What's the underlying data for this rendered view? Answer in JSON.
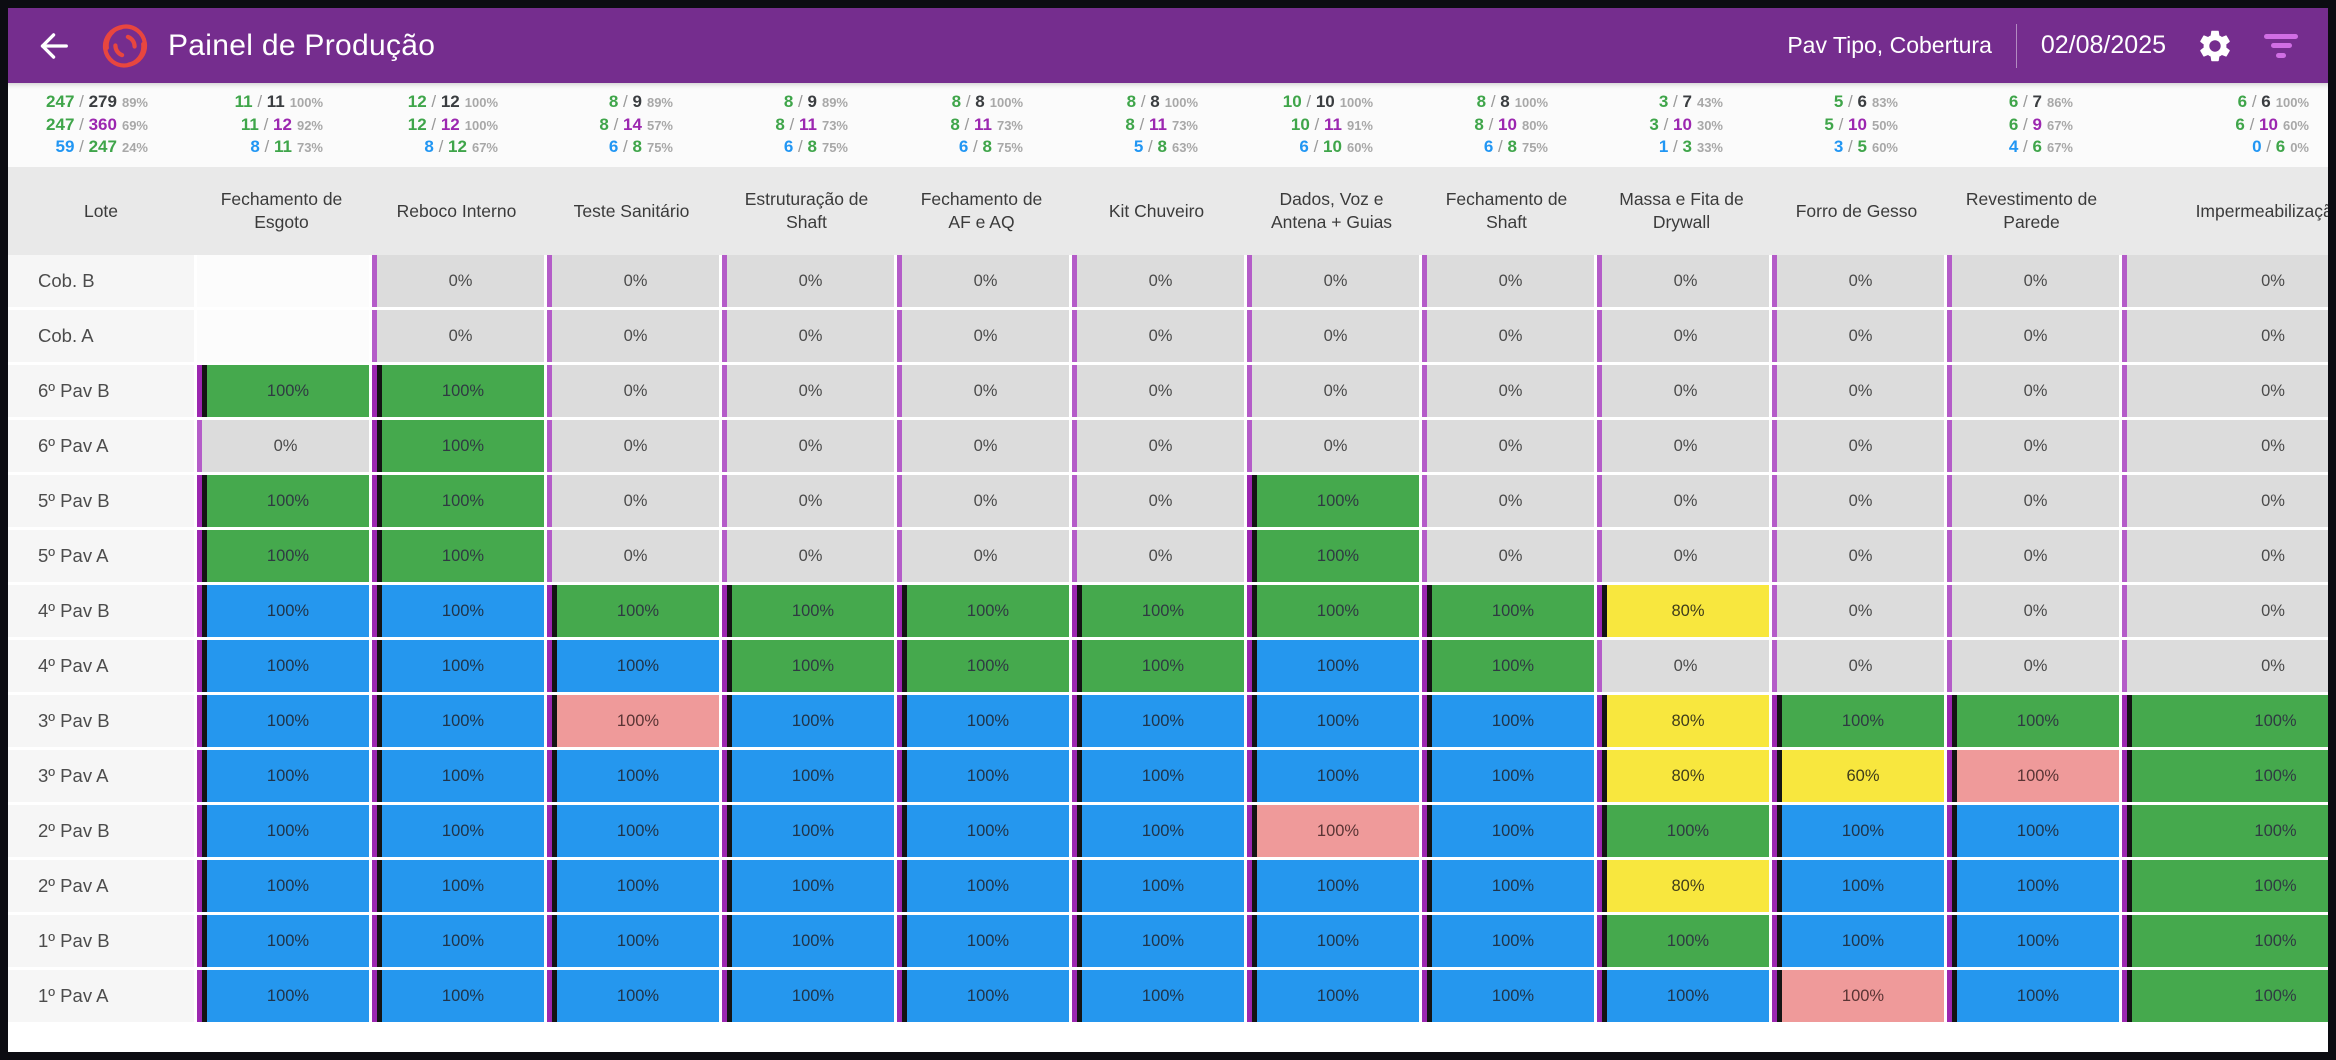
{
  "header": {
    "title": "Painel de Produção",
    "scope": "Pav Tipo, Cobertura",
    "date": "02/08/2025"
  },
  "icons": {
    "back": "arrow-left",
    "logo": "brand-red-swirl",
    "settings": "gear",
    "filter": "filter-bars"
  },
  "columns": [
    {
      "key": "lote",
      "label": "Lote"
    },
    {
      "key": "fechamento-esgoto",
      "label": "Fechamento de Esgoto"
    },
    {
      "key": "reboco-interno",
      "label": "Reboco Interno"
    },
    {
      "key": "teste-sanitario",
      "label": "Teste Sanitário"
    },
    {
      "key": "estruturacao-shaft",
      "label": "Estruturação de Shaft"
    },
    {
      "key": "fechamento-af-aq",
      "label": "Fechamento de AF e AQ"
    },
    {
      "key": "kit-chuveiro",
      "label": "Kit Chuveiro"
    },
    {
      "key": "dados-voz-antena-guias",
      "label": "Dados, Voz e Antena + Guias"
    },
    {
      "key": "fechamento-shaft",
      "label": "Fechamento de Shaft"
    },
    {
      "key": "massa-fita-drywall",
      "label": "Massa e Fita de Drywall"
    },
    {
      "key": "forro-gesso",
      "label": "Forro de Gesso"
    },
    {
      "key": "revestimento-parede",
      "label": "Revestimento de Parede"
    },
    {
      "key": "impermeabilizacao",
      "label": "Impermeabilização"
    }
  ],
  "stats": [
    [
      [
        "247",
        "279",
        "89%"
      ],
      [
        "247",
        "360",
        "69%"
      ],
      [
        "59",
        "247",
        "24%"
      ]
    ],
    [
      [
        "11",
        "11",
        "100%"
      ],
      [
        "11",
        "12",
        "92%"
      ],
      [
        "8",
        "11",
        "73%"
      ]
    ],
    [
      [
        "12",
        "12",
        "100%"
      ],
      [
        "12",
        "12",
        "100%"
      ],
      [
        "8",
        "12",
        "67%"
      ]
    ],
    [
      [
        "8",
        "9",
        "89%"
      ],
      [
        "8",
        "14",
        "57%"
      ],
      [
        "6",
        "8",
        "75%"
      ]
    ],
    [
      [
        "8",
        "9",
        "89%"
      ],
      [
        "8",
        "11",
        "73%"
      ],
      [
        "6",
        "8",
        "75%"
      ]
    ],
    [
      [
        "8",
        "8",
        "100%"
      ],
      [
        "8",
        "11",
        "73%"
      ],
      [
        "6",
        "8",
        "75%"
      ]
    ],
    [
      [
        "8",
        "8",
        "100%"
      ],
      [
        "8",
        "11",
        "73%"
      ],
      [
        "5",
        "8",
        "63%"
      ]
    ],
    [
      [
        "10",
        "10",
        "100%"
      ],
      [
        "10",
        "11",
        "91%"
      ],
      [
        "6",
        "10",
        "60%"
      ]
    ],
    [
      [
        "8",
        "8",
        "100%"
      ],
      [
        "8",
        "10",
        "80%"
      ],
      [
        "6",
        "8",
        "75%"
      ]
    ],
    [
      [
        "3",
        "7",
        "43%"
      ],
      [
        "3",
        "10",
        "30%"
      ],
      [
        "1",
        "3",
        "33%"
      ]
    ],
    [
      [
        "5",
        "6",
        "83%"
      ],
      [
        "5",
        "10",
        "50%"
      ],
      [
        "3",
        "5",
        "60%"
      ]
    ],
    [
      [
        "6",
        "7",
        "86%"
      ],
      [
        "6",
        "9",
        "67%"
      ],
      [
        "4",
        "6",
        "67%"
      ]
    ],
    [
      [
        "6",
        "6",
        "100%"
      ],
      [
        "6",
        "10",
        "60%"
      ],
      [
        "0",
        "6",
        "0%"
      ]
    ]
  ],
  "rows": [
    {
      "label": "Cob. B",
      "cells": [
        "",
        "0%|n",
        "0%|n",
        "0%|n",
        "0%|n",
        "0%|n",
        "0%|n",
        "0%|n",
        "0%|n",
        "0%|n",
        "0%|n",
        "0%|n"
      ]
    },
    {
      "label": "Cob. A",
      "cells": [
        "",
        "0%|n",
        "0%|n",
        "0%|n",
        "0%|n",
        "0%|n",
        "0%|n",
        "0%|n",
        "0%|n",
        "0%|n",
        "0%|n",
        "0%|n"
      ]
    },
    {
      "label": "6º Pav B",
      "cells": [
        "100%|g",
        "100%|g",
        "0%|n",
        "0%|n",
        "0%|n",
        "0%|n",
        "0%|n",
        "0%|n",
        "0%|n",
        "0%|n",
        "0%|n",
        "0%|n"
      ]
    },
    {
      "label": "6º Pav A",
      "cells": [
        "0%|n",
        "100%|g",
        "0%|n",
        "0%|n",
        "0%|n",
        "0%|n",
        "0%|n",
        "0%|n",
        "0%|n",
        "0%|n",
        "0%|n",
        "0%|n"
      ]
    },
    {
      "label": "5º Pav B",
      "cells": [
        "100%|g",
        "100%|g",
        "0%|n",
        "0%|n",
        "0%|n",
        "0%|n",
        "100%|g",
        "0%|n",
        "0%|n",
        "0%|n",
        "0%|n",
        "0%|n"
      ]
    },
    {
      "label": "5º Pav A",
      "cells": [
        "100%|g",
        "100%|g",
        "0%|n",
        "0%|n",
        "0%|n",
        "0%|n",
        "100%|g",
        "0%|n",
        "0%|n",
        "0%|n",
        "0%|n",
        "0%|n"
      ]
    },
    {
      "label": "4º Pav B",
      "cells": [
        "100%|b",
        "100%|b",
        "100%|g",
        "100%|g",
        "100%|g",
        "100%|g",
        "100%|g",
        "100%|g",
        "80%|y",
        "0%|n",
        "0%|n",
        "0%|n"
      ]
    },
    {
      "label": "4º Pav A",
      "cells": [
        "100%|b",
        "100%|b",
        "100%|b",
        "100%|g",
        "100%|g",
        "100%|g",
        "100%|b",
        "100%|g",
        "0%|n",
        "0%|n",
        "0%|n",
        "0%|n"
      ]
    },
    {
      "label": "3º Pav B",
      "cells": [
        "100%|b",
        "100%|b",
        "100%|p",
        "100%|b",
        "100%|b",
        "100%|b",
        "100%|b",
        "100%|b",
        "80%|y",
        "100%|g",
        "100%|g",
        "100%|g"
      ]
    },
    {
      "label": "3º Pav A",
      "cells": [
        "100%|b",
        "100%|b",
        "100%|b",
        "100%|b",
        "100%|b",
        "100%|b",
        "100%|b",
        "100%|b",
        "80%|y",
        "60%|y",
        "100%|p",
        "100%|g"
      ]
    },
    {
      "label": "2º Pav B",
      "cells": [
        "100%|b",
        "100%|b",
        "100%|b",
        "100%|b",
        "100%|b",
        "100%|b",
        "100%|p",
        "100%|b",
        "100%|g",
        "100%|b",
        "100%|b",
        "100%|g"
      ]
    },
    {
      "label": "2º Pav A",
      "cells": [
        "100%|b",
        "100%|b",
        "100%|b",
        "100%|b",
        "100%|b",
        "100%|b",
        "100%|b",
        "100%|b",
        "80%|y",
        "100%|b",
        "100%|b",
        "100%|g"
      ]
    },
    {
      "label": "1º Pav B",
      "cells": [
        "100%|b",
        "100%|b",
        "100%|b",
        "100%|b",
        "100%|b",
        "100%|b",
        "100%|b",
        "100%|b",
        "100%|g",
        "100%|b",
        "100%|b",
        "100%|g"
      ]
    },
    {
      "label": "1º Pav A",
      "cells": [
        "100%|b",
        "100%|b",
        "100%|b",
        "100%|b",
        "100%|b",
        "100%|b",
        "100%|b",
        "100%|b",
        "100%|b",
        "100%|p",
        "100%|b",
        "100%|g"
      ]
    }
  ],
  "colors": {
    "header_purple": "#752d8e",
    "accent_filter": "#d06ee4",
    "cell_green": "#45a94d",
    "cell_blue": "#2597ee",
    "cell_yellow": "#f8e73e",
    "cell_pink": "#ef9a9a",
    "cell_gray": "#dcdcdc",
    "cell_empty": "#fcfcfc",
    "stripe_purple": "#9c27b0",
    "stripe_purple_light": "#b45cc8",
    "stripe_black": "#141414",
    "stat_green": "#3fa54a",
    "stat_blue": "#2196f3",
    "stat_purple": "#9c27b0",
    "logo_red": "#e8463f"
  }
}
